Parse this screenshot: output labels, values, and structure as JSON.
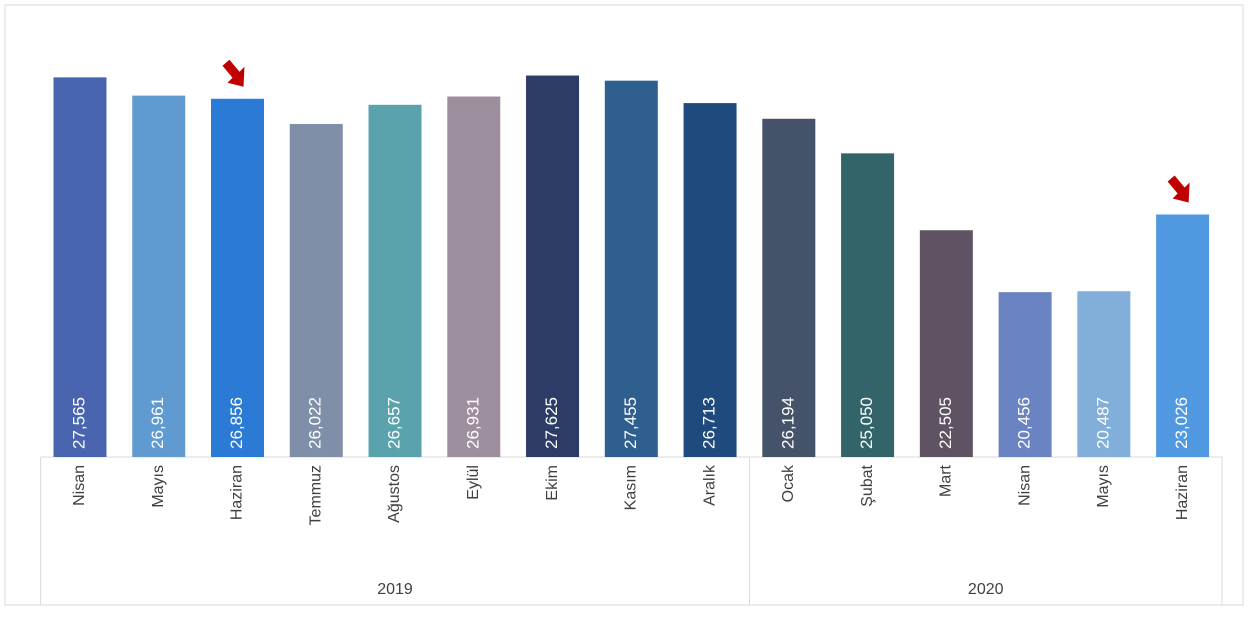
{
  "chart_data": {
    "type": "bar",
    "groups": [
      {
        "name": "2019",
        "categories": [
          "Nisan",
          "Mayıs",
          "Haziran",
          "Temmuz",
          "Ağustos",
          "Eylül",
          "Ekim",
          "Kasım",
          "Aralık"
        ],
        "values": [
          27565,
          26961,
          26856,
          26022,
          26657,
          26931,
          27625,
          27455,
          26713
        ],
        "value_labels": [
          "27,565",
          "26,961",
          "26,856",
          "26,022",
          "26,657",
          "26,931",
          "27,625",
          "27,455",
          "26,713"
        ],
        "colors": [
          "#4a65b0",
          "#5f9bd1",
          "#2b7bd6",
          "#7f8fa8",
          "#5aa3ad",
          "#9e8f9f",
          "#2c3c66",
          "#2e5f8e",
          "#1e4a7e"
        ],
        "marked": [
          2
        ]
      },
      {
        "name": "2020",
        "categories": [
          "Ocak",
          "Şubat",
          "Mart",
          "Nisan",
          "Mayıs",
          "Haziran"
        ],
        "values": [
          26194,
          25050,
          22505,
          20456,
          20487,
          23026
        ],
        "value_labels": [
          "26,194",
          "25,050",
          "22,505",
          "20,456",
          "20,487",
          "23,026"
        ],
        "colors": [
          "#45536a",
          "#33646a",
          "#5f5262",
          "#6a83c2",
          "#81afd9",
          "#5098e0"
        ],
        "marked": [
          5
        ]
      }
    ],
    "ylim": [
      15000,
      29000
    ],
    "arrow_color": "#c00000"
  }
}
